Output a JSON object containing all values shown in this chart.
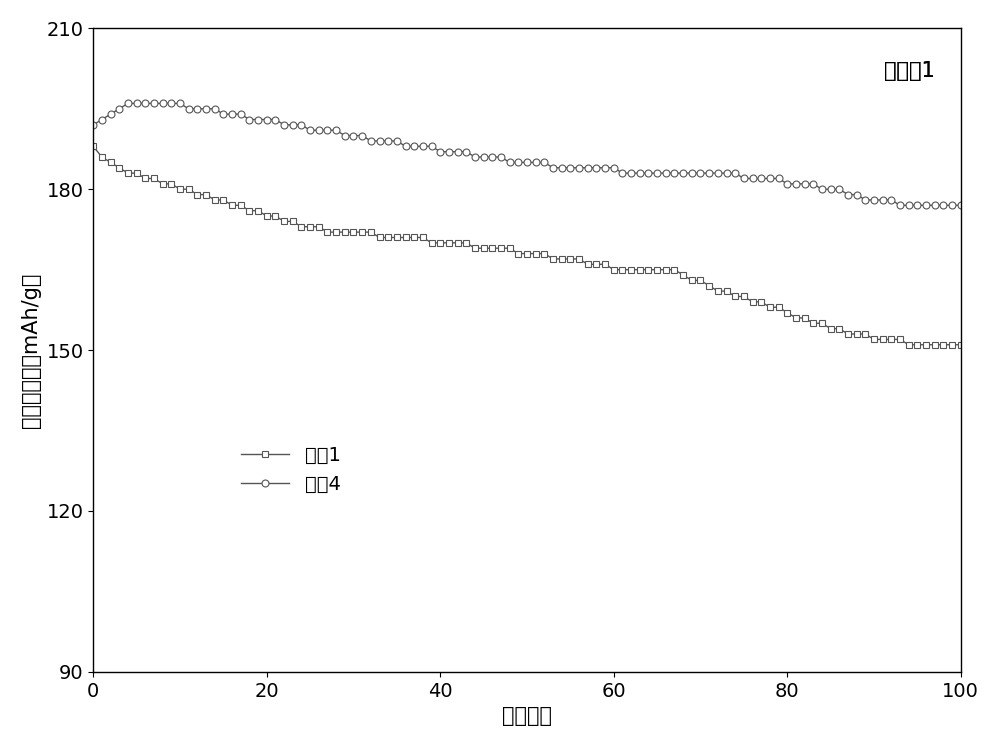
{
  "title_annotation": "实施例1",
  "xlabel": "循环次数",
  "ylabel": "放电比容量（mAh/g）",
  "xlim": [
    0,
    100
  ],
  "ylim": [
    90,
    210
  ],
  "xticks": [
    0,
    20,
    40,
    60,
    80,
    100
  ],
  "yticks": [
    90,
    120,
    150,
    180,
    210
  ],
  "legend_labels": [
    "编号1",
    "编号4"
  ],
  "series1_x": [
    0,
    1,
    2,
    3,
    4,
    5,
    6,
    7,
    8,
    9,
    10,
    11,
    12,
    13,
    14,
    15,
    16,
    17,
    18,
    19,
    20,
    21,
    22,
    23,
    24,
    25,
    26,
    27,
    28,
    29,
    30,
    31,
    32,
    33,
    34,
    35,
    36,
    37,
    38,
    39,
    40,
    41,
    42,
    43,
    44,
    45,
    46,
    47,
    48,
    49,
    50,
    51,
    52,
    53,
    54,
    55,
    56,
    57,
    58,
    59,
    60,
    61,
    62,
    63,
    64,
    65,
    66,
    67,
    68,
    69,
    70,
    71,
    72,
    73,
    74,
    75,
    76,
    77,
    78,
    79,
    80,
    81,
    82,
    83,
    84,
    85,
    86,
    87,
    88,
    89,
    90,
    91,
    92,
    93,
    94,
    95,
    96,
    97,
    98,
    99,
    100
  ],
  "series1_y": [
    188,
    186,
    185,
    184,
    183,
    183,
    182,
    182,
    181,
    181,
    180,
    180,
    179,
    179,
    178,
    178,
    177,
    177,
    176,
    176,
    175,
    175,
    174,
    174,
    173,
    173,
    173,
    172,
    172,
    172,
    172,
    172,
    172,
    171,
    171,
    171,
    171,
    171,
    171,
    170,
    170,
    170,
    170,
    170,
    169,
    169,
    169,
    169,
    169,
    168,
    168,
    168,
    168,
    167,
    167,
    167,
    167,
    166,
    166,
    166,
    165,
    165,
    165,
    165,
    165,
    165,
    165,
    165,
    164,
    163,
    163,
    162,
    161,
    161,
    160,
    160,
    159,
    159,
    158,
    158,
    157,
    156,
    156,
    155,
    155,
    154,
    154,
    153,
    153,
    153,
    152,
    152,
    152,
    152,
    151,
    151,
    151,
    151,
    151,
    151,
    151
  ],
  "series2_x": [
    0,
    1,
    2,
    3,
    4,
    5,
    6,
    7,
    8,
    9,
    10,
    11,
    12,
    13,
    14,
    15,
    16,
    17,
    18,
    19,
    20,
    21,
    22,
    23,
    24,
    25,
    26,
    27,
    28,
    29,
    30,
    31,
    32,
    33,
    34,
    35,
    36,
    37,
    38,
    39,
    40,
    41,
    42,
    43,
    44,
    45,
    46,
    47,
    48,
    49,
    50,
    51,
    52,
    53,
    54,
    55,
    56,
    57,
    58,
    59,
    60,
    61,
    62,
    63,
    64,
    65,
    66,
    67,
    68,
    69,
    70,
    71,
    72,
    73,
    74,
    75,
    76,
    77,
    78,
    79,
    80,
    81,
    82,
    83,
    84,
    85,
    86,
    87,
    88,
    89,
    90,
    91,
    92,
    93,
    94,
    95,
    96,
    97,
    98,
    99,
    100
  ],
  "series2_y": [
    192,
    193,
    194,
    195,
    196,
    196,
    196,
    196,
    196,
    196,
    196,
    195,
    195,
    195,
    195,
    194,
    194,
    194,
    193,
    193,
    193,
    193,
    192,
    192,
    192,
    191,
    191,
    191,
    191,
    190,
    190,
    190,
    189,
    189,
    189,
    189,
    188,
    188,
    188,
    188,
    187,
    187,
    187,
    187,
    186,
    186,
    186,
    186,
    185,
    185,
    185,
    185,
    185,
    184,
    184,
    184,
    184,
    184,
    184,
    184,
    184,
    183,
    183,
    183,
    183,
    183,
    183,
    183,
    183,
    183,
    183,
    183,
    183,
    183,
    183,
    182,
    182,
    182,
    182,
    182,
    181,
    181,
    181,
    181,
    180,
    180,
    180,
    179,
    179,
    178,
    178,
    178,
    178,
    177,
    177,
    177,
    177,
    177,
    177,
    177,
    177
  ],
  "line_color": "#555555",
  "marker_size": 5,
  "font_size_label": 15,
  "font_size_tick": 14,
  "font_size_legend": 14,
  "font_size_annotation": 15,
  "bg_color": "#ffffff"
}
